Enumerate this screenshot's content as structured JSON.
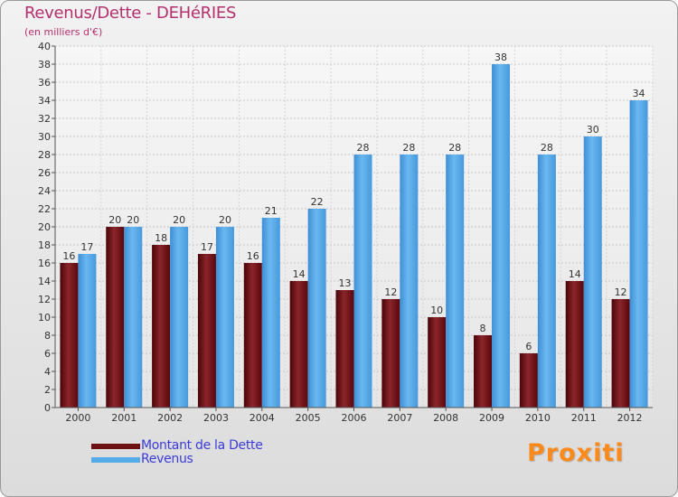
{
  "chart_data": {
    "type": "bar",
    "title": "Revenus/Dette - DEHéRIES",
    "subtitle": "(en milliers d'€)",
    "categories": [
      "2000",
      "2001",
      "2002",
      "2003",
      "2004",
      "2005",
      "2006",
      "2007",
      "2008",
      "2009",
      "2010",
      "2011",
      "2012"
    ],
    "series": [
      {
        "name": "Montant de la Dette",
        "values": [
          16,
          20,
          18,
          17,
          16,
          14,
          13,
          12,
          10,
          8,
          6,
          14,
          12
        ],
        "color": "#6e0f14"
      },
      {
        "name": "Revenus",
        "values": [
          17,
          20,
          20,
          20,
          21,
          22,
          28,
          28,
          28,
          38,
          28,
          30,
          34
        ],
        "color": "#55aae8"
      }
    ],
    "ylim": [
      0,
      40
    ],
    "yticks": [
      0,
      2,
      4,
      6,
      8,
      10,
      12,
      14,
      16,
      18,
      20,
      22,
      24,
      26,
      28,
      30,
      32,
      34,
      36,
      38,
      40
    ],
    "grid": true,
    "legend": "bottom-left"
  },
  "brand": {
    "text": "Proxiti"
  }
}
